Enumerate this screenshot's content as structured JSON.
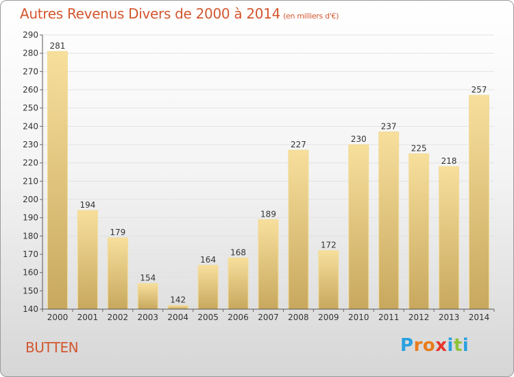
{
  "title": "Autres Revenus Divers de 2000 à 2014",
  "unit": "(en milliers d'€)",
  "place": "BUTTEN",
  "logo": {
    "letters": [
      "P",
      "r",
      "o",
      "x",
      "i",
      "t",
      "i"
    ],
    "colors": [
      "#2aa0e0",
      "#e87c1a",
      "#e87c1a",
      "#e8352a",
      "#2aa0e0",
      "#8fc23a",
      "#2aa0e0"
    ]
  },
  "colors": {
    "accent": "#d2562e",
    "bar_light": "#f7df9c",
    "bar_dark": "#c8a85e"
  },
  "chart_data": {
    "type": "bar",
    "categories": [
      "2000",
      "2001",
      "2002",
      "2003",
      "2004",
      "2005",
      "2006",
      "2007",
      "2008",
      "2009",
      "2010",
      "2011",
      "2012",
      "2013",
      "2014"
    ],
    "values": [
      281,
      194,
      179,
      154,
      142,
      164,
      168,
      189,
      227,
      172,
      230,
      237,
      225,
      218,
      257
    ],
    "ylim": [
      140,
      290
    ],
    "yticks": [
      140,
      150,
      160,
      170,
      180,
      190,
      200,
      210,
      220,
      230,
      240,
      250,
      260,
      270,
      280,
      290
    ],
    "grid": true
  }
}
